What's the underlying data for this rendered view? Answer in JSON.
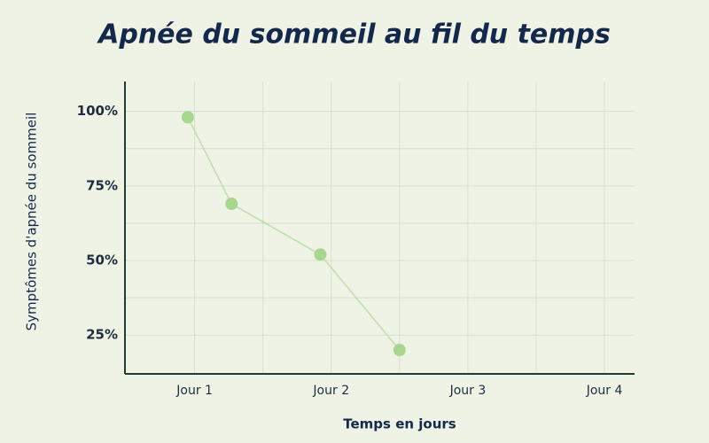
{
  "chart_data": {
    "type": "line",
    "title": "Apnée du sommeil au fil du temps",
    "x_label": "Temps en jours",
    "y_label": "Symptômes d'apnée du sommeil",
    "series": [
      {
        "color": "#a9d68f",
        "x": [
          0.95,
          1.27,
          1.92,
          2.5
        ],
        "values": [
          98,
          69,
          52,
          20
        ]
      }
    ],
    "xlim": [
      0.49,
      4.22
    ],
    "xticks": [
      {
        "value": 1,
        "label": "Jour 1"
      },
      {
        "value": 2,
        "label": "Jour 2"
      },
      {
        "value": 3,
        "label": "Jour 3"
      },
      {
        "value": 4,
        "label": "Jour 4"
      }
    ],
    "x_minor_grid": [
      1.5,
      2.5,
      3.5
    ],
    "ylim": [
      12,
      110
    ],
    "yticks": [
      {
        "value": 25,
        "label": "25%"
      },
      {
        "value": 50,
        "label": "50%"
      },
      {
        "value": 75,
        "label": "75%"
      },
      {
        "value": 100,
        "label": "100%"
      }
    ],
    "y_minor_grid": [
      37.5,
      62.5,
      87.5
    ],
    "grid": true
  }
}
